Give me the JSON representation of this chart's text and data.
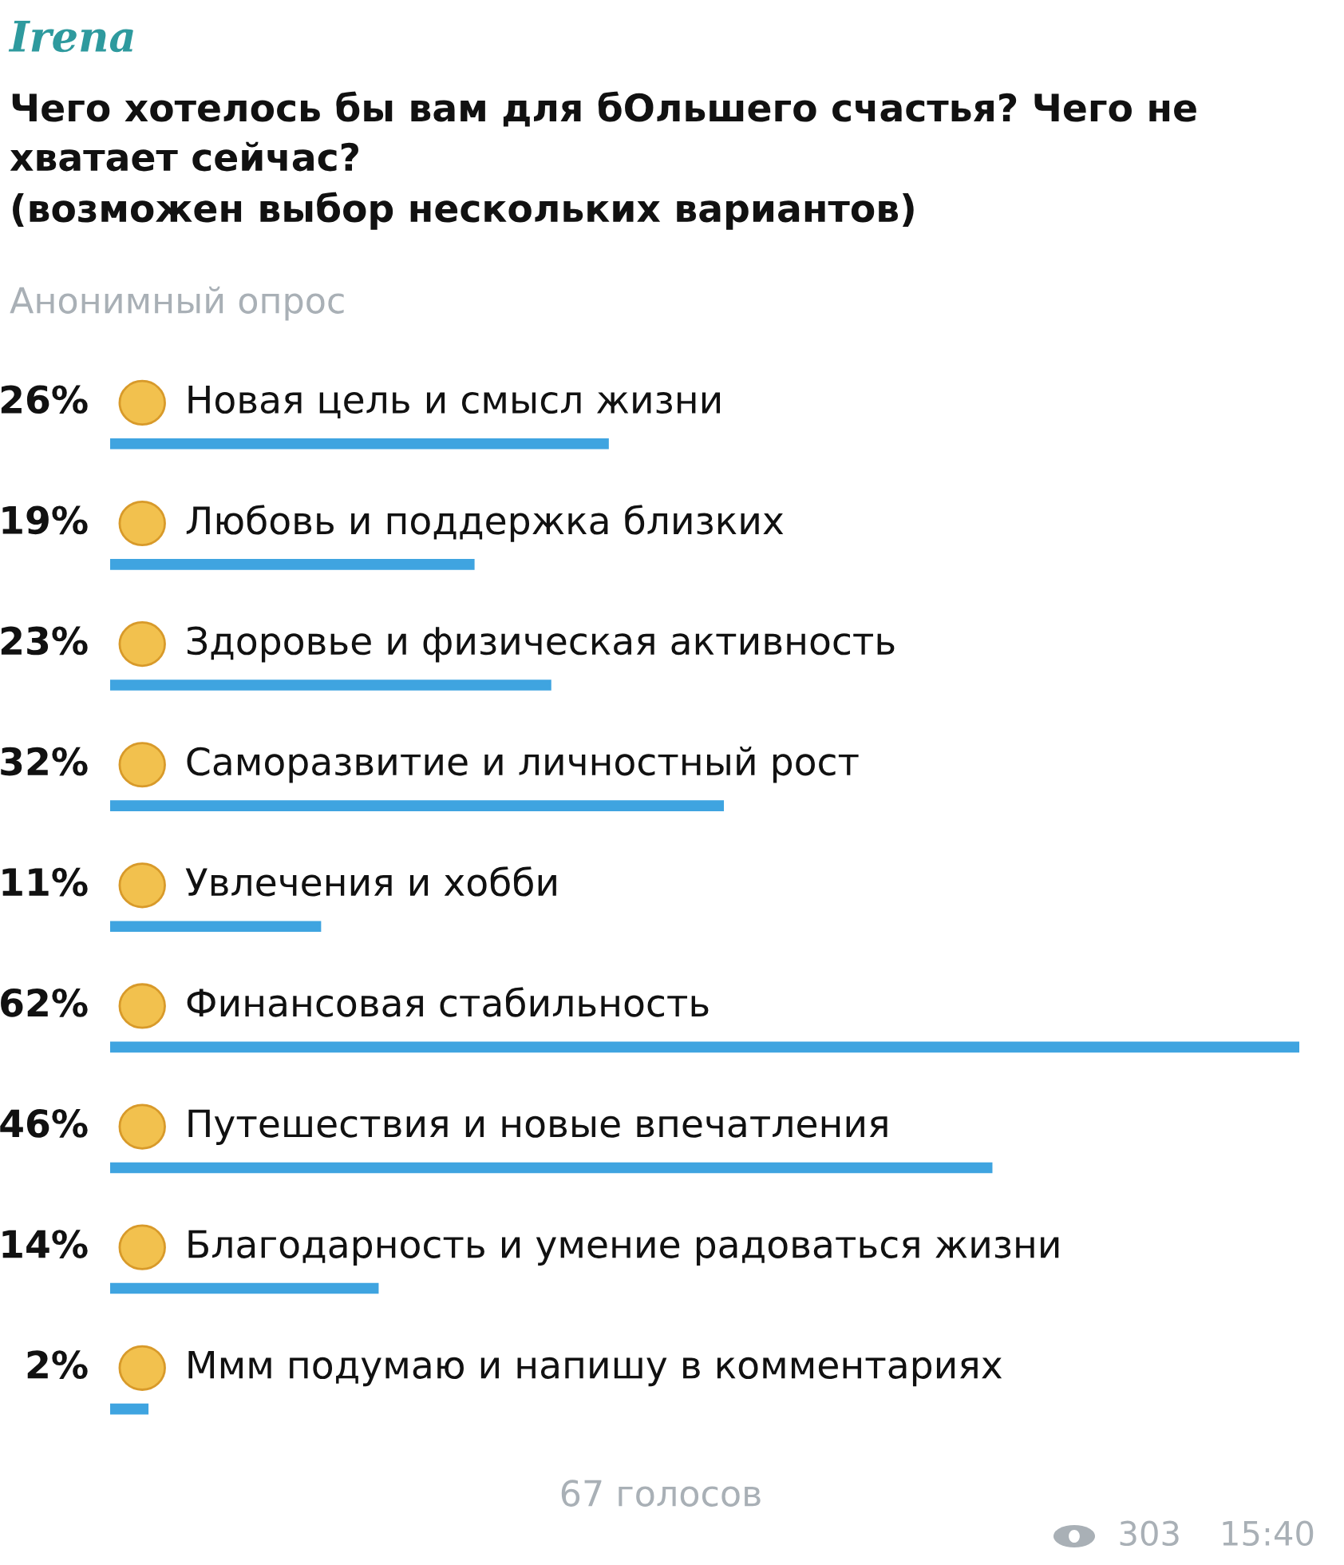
{
  "chart_data": {
    "type": "bar",
    "orientation": "horizontal",
    "title": "Чего хотелось бы вам для бОльшего счастья? Чего не\nхватает сейчас?\n(возможен выбор нескольких вариантов)",
    "subtitle": "Анонимный опрос",
    "categories": [
      "Новая цель и смысл жизни",
      "Любовь и поддержка близких",
      "Здоровье и физическая активность",
      "Саморазвитие и личностный рост",
      "Увлечения и хобби",
      "Финансовая стабильность",
      "Путешествия и новые впечатления",
      "Благодарность и умение радоваться жизни",
      "Ммм подумаю и напишу в комментариях"
    ],
    "values": [
      26,
      19,
      23,
      32,
      11,
      62,
      46,
      14,
      2
    ],
    "value_labels": [
      "26%",
      "19%",
      "23%",
      "32%",
      "11%",
      "62%",
      "46%",
      "14%",
      "2%"
    ],
    "color": "#3fa4e0",
    "annotations": [
      "Irena",
      "67 голосов",
      "303",
      "15:40"
    ]
  }
}
